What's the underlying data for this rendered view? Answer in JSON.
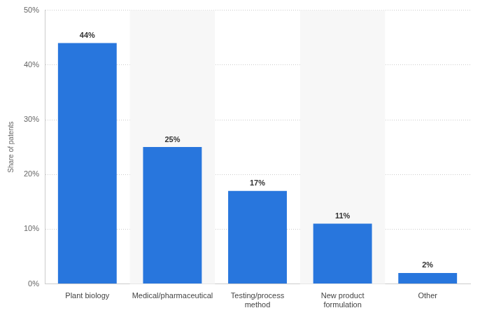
{
  "chart_data": {
    "type": "bar",
    "y_label": "Share of patents",
    "categories": [
      "Plant biology",
      "Medical/pharmaceutical",
      [
        "Testing/process",
        "method"
      ],
      [
        "New product",
        "formulation"
      ],
      "Other"
    ],
    "values": [
      44,
      25,
      17,
      11,
      2
    ],
    "value_labels": [
      "44%",
      "25%",
      "17%",
      "11%",
      "2%"
    ],
    "data_labels": true,
    "color": "#2876dd",
    "ylim": [
      0,
      50
    ],
    "yticks": [
      {
        "value": 0,
        "label": "0%"
      },
      {
        "value": 10,
        "label": "10%"
      },
      {
        "value": 20,
        "label": "20%"
      },
      {
        "value": 30,
        "label": "30%"
      },
      {
        "value": 40,
        "label": "40%"
      },
      {
        "value": 50,
        "label": "50%"
      }
    ],
    "grid": true
  }
}
